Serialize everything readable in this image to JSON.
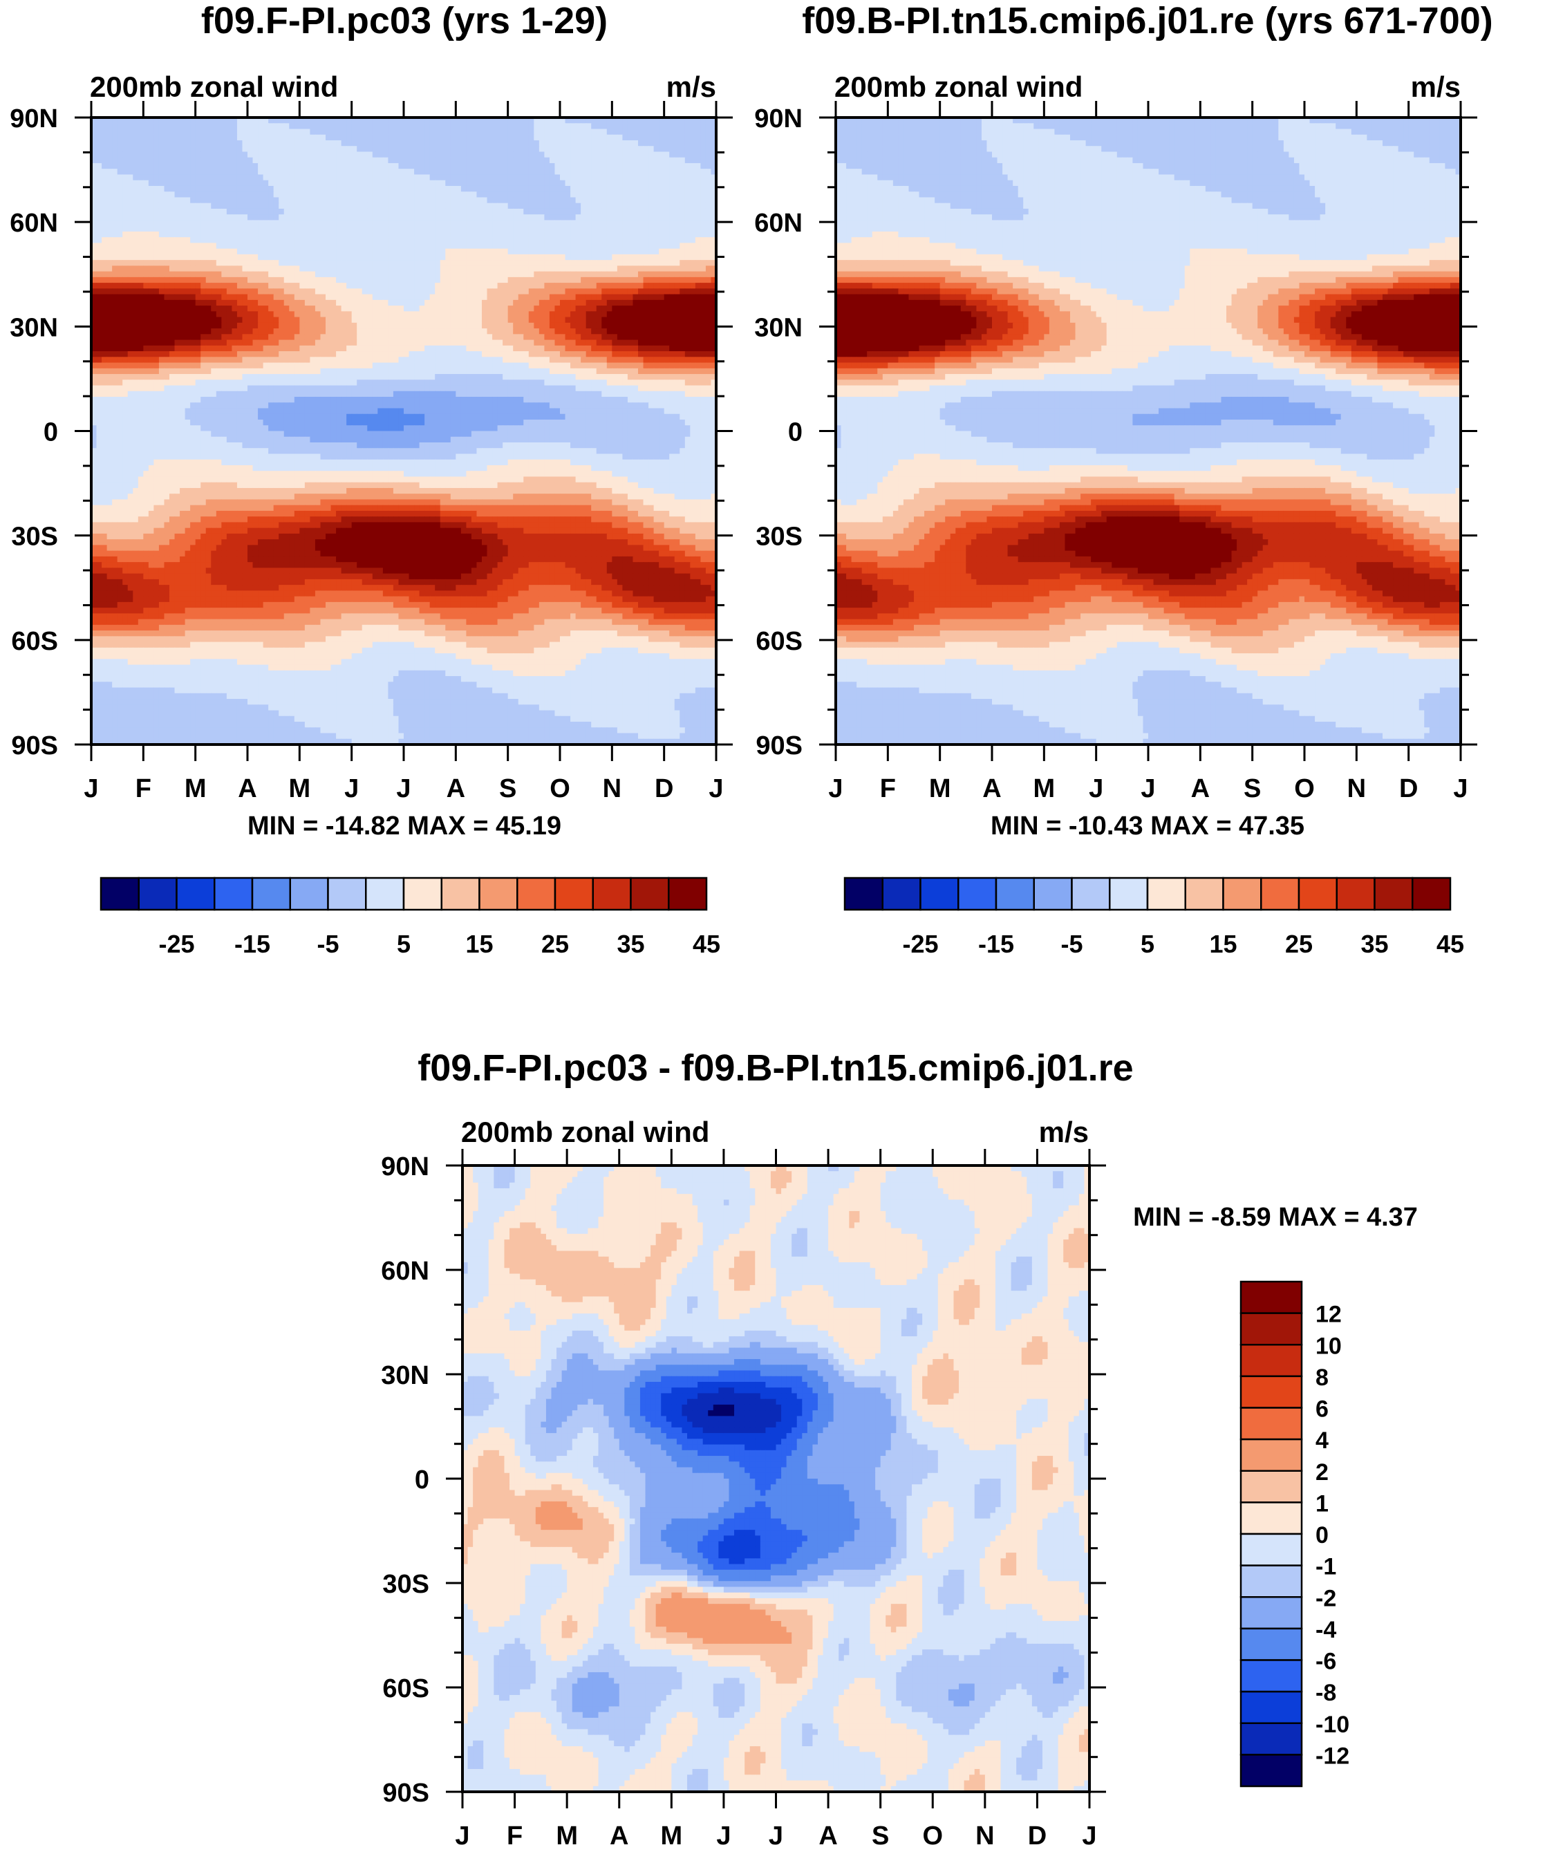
{
  "chart_data": [
    {
      "type": "heatmap",
      "title": "f09.F-PI.pc03 (yrs 1-29)",
      "left_label": "200mb zonal wind",
      "right_label": "m/s",
      "variable": "200mb zonal wind",
      "units": "m/s",
      "x_tick_labels": [
        "J",
        "F",
        "M",
        "A",
        "M",
        "J",
        "J",
        "A",
        "S",
        "O",
        "N",
        "D",
        "J"
      ],
      "y_tick_labels": [
        "90N",
        "60N",
        "30N",
        "0",
        "30S",
        "60S",
        "90S"
      ],
      "x_range": [
        0,
        12
      ],
      "y_range": [
        90,
        -90
      ],
      "stats_text": "MIN = -14.82 MAX =  45.19",
      "min": -14.82,
      "max": 45.19,
      "colorbar_levels": [
        -30,
        -25,
        -20,
        -15,
        -10,
        -5,
        0,
        5,
        10,
        15,
        20,
        25,
        30,
        35,
        40,
        45
      ],
      "colorbar_tick_labels": [
        "-25",
        "-15",
        "-5",
        "5",
        "15",
        "25",
        "35",
        "45"
      ],
      "colorbar_colors": [
        "#020066",
        "#0a2ab8",
        "#0c3ed9",
        "#2d63f0",
        "#5689ef",
        "#86a9f4",
        "#b3c9f8",
        "#d5e4fb",
        "#fde7d6",
        "#f8c2a4",
        "#f49a70",
        "#f06c3e",
        "#e24519",
        "#c82c10",
        "#a11608",
        "#800000"
      ],
      "features": [
        {
          "kind": "jet",
          "month": 1.1,
          "lat": 31,
          "peak": 42
        },
        {
          "kind": "jet",
          "month": 11.2,
          "lat": 32,
          "peak": 40
        },
        {
          "kind": "easterly",
          "month": 6.1,
          "lat": 4,
          "peak": -14.8
        },
        {
          "kind": "jet",
          "month": 6.0,
          "lat": -31,
          "peak": 45.2
        },
        {
          "kind": "jet",
          "month": 1.0,
          "lat": -49,
          "peak": 34
        },
        {
          "kind": "jet",
          "month": 10.8,
          "lat": -45,
          "peak": 33
        }
      ]
    },
    {
      "type": "heatmap",
      "title": "f09.B-PI.tn15.cmip6.j01.re (yrs 671-700)",
      "left_label": "200mb zonal wind",
      "right_label": "m/s",
      "variable": "200mb zonal wind",
      "units": "m/s",
      "x_tick_labels": [
        "J",
        "F",
        "M",
        "A",
        "M",
        "J",
        "J",
        "A",
        "S",
        "O",
        "N",
        "D",
        "J"
      ],
      "y_tick_labels": [
        "90N",
        "60N",
        "30N",
        "0",
        "30S",
        "60S",
        "90S"
      ],
      "x_range": [
        0,
        12
      ],
      "y_range": [
        90,
        -90
      ],
      "stats_text": "MIN = -10.43 MAX =  47.35",
      "min": -10.43,
      "max": 47.35,
      "colorbar_levels": [
        -30,
        -25,
        -20,
        -15,
        -10,
        -5,
        0,
        5,
        10,
        15,
        20,
        25,
        30,
        35,
        40,
        45
      ],
      "colorbar_tick_labels": [
        "-25",
        "-15",
        "-5",
        "5",
        "15",
        "25",
        "35",
        "45"
      ],
      "colorbar_colors": [
        "#020066",
        "#0a2ab8",
        "#0c3ed9",
        "#2d63f0",
        "#5689ef",
        "#86a9f4",
        "#b3c9f8",
        "#d5e4fb",
        "#fde7d6",
        "#f8c2a4",
        "#f49a70",
        "#f06c3e",
        "#e24519",
        "#c82c10",
        "#a11608",
        "#800000"
      ],
      "features": [
        {
          "kind": "jet",
          "month": 1.1,
          "lat": 30,
          "peak": 45
        },
        {
          "kind": "jet",
          "month": 11.3,
          "lat": 32,
          "peak": 40
        },
        {
          "kind": "easterly",
          "month": 7.0,
          "lat": 5,
          "peak": -10.4
        },
        {
          "kind": "jet",
          "month": 6.2,
          "lat": -30,
          "peak": 47.3
        },
        {
          "kind": "jet",
          "month": 1.0,
          "lat": -50,
          "peak": 34
        },
        {
          "kind": "jet",
          "month": 11.0,
          "lat": -46,
          "peak": 33
        }
      ]
    },
    {
      "type": "heatmap",
      "title": "f09.F-PI.pc03 - f09.B-PI.tn15.cmip6.j01.re",
      "left_label": "200mb zonal wind",
      "right_label": "m/s",
      "variable": "200mb zonal wind difference",
      "units": "m/s",
      "x_tick_labels": [
        "J",
        "F",
        "M",
        "A",
        "M",
        "J",
        "J",
        "A",
        "S",
        "O",
        "N",
        "D",
        "J"
      ],
      "y_tick_labels": [
        "90N",
        "60N",
        "30N",
        "0",
        "30S",
        "60S",
        "90S"
      ],
      "x_range": [
        0,
        12
      ],
      "y_range": [
        90,
        -90
      ],
      "stats_text": "MIN =  -8.59 MAX =   4.37",
      "min": -8.59,
      "max": 4.37,
      "colorbar_levels": [
        -12,
        -10,
        -8,
        -6,
        -4,
        -2,
        -1,
        0,
        1,
        2,
        4,
        6,
        8,
        10,
        12
      ],
      "colorbar_tick_labels": [
        "12",
        "10",
        "8",
        "6",
        "4",
        "2",
        "1",
        "0",
        "-1",
        "-2",
        "-4",
        "-6",
        "-8",
        "-10",
        "-12"
      ],
      "colorbar_colors": [
        "#020066",
        "#0a2ab8",
        "#0c3ed9",
        "#2d63f0",
        "#5689ef",
        "#86a9f4",
        "#b3c9f8",
        "#d5e4fb",
        "#fde7d6",
        "#f8c2a4",
        "#f49a70",
        "#f06c3e",
        "#e24519",
        "#c82c10",
        "#a11608",
        "#800000"
      ],
      "features": [
        {
          "kind": "anomaly",
          "month": 5.2,
          "lat": 20,
          "value": -8.59
        },
        {
          "kind": "anomaly",
          "month": 5.3,
          "lat": -22,
          "value": -7.5
        },
        {
          "kind": "anomaly",
          "month": 1.8,
          "lat": -12,
          "value": 2.3
        },
        {
          "kind": "anomaly",
          "month": 5.0,
          "lat": -38,
          "value": 4.37
        },
        {
          "kind": "anomaly",
          "month": 2.5,
          "lat": 60,
          "value": 1.6
        },
        {
          "kind": "anomaly",
          "month": 10.0,
          "lat": 28,
          "value": 1.4
        },
        {
          "kind": "anomaly",
          "month": 3.0,
          "lat": -60,
          "value": -2.3
        },
        {
          "kind": "anomaly",
          "month": 10.0,
          "lat": -58,
          "value": -2.2
        }
      ]
    }
  ]
}
